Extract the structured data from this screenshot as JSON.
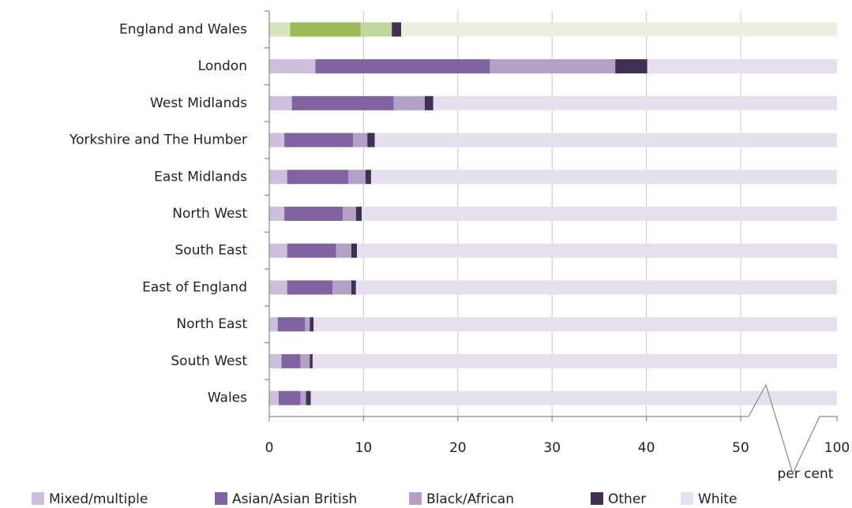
{
  "chart_data": {
    "type": "stacked-bar-horizontal",
    "categories": [
      "England and Wales",
      "London",
      "West Midlands",
      "Yorkshire and The Humber",
      "East Midlands",
      "North West",
      "South East",
      "East of England",
      "North East",
      "South West",
      "Wales"
    ],
    "series": [
      {
        "name": "Mixed/multiple",
        "color": "#ccc0dc",
        "highlight_color": "#d7e4bd",
        "values": [
          2.2,
          4.9,
          2.4,
          1.6,
          1.9,
          1.6,
          1.9,
          1.9,
          0.9,
          1.3,
          1.0
        ]
      },
      {
        "name": "Asian/Asian British",
        "color": "#8064a2",
        "highlight_color": "#9bbb59",
        "values": [
          7.5,
          18.5,
          10.8,
          7.3,
          6.5,
          6.2,
          5.2,
          4.8,
          2.9,
          2.0,
          2.3
        ]
      },
      {
        "name": "Black/African",
        "color": "#b3a2c7",
        "highlight_color": "#c3d69b",
        "values": [
          3.3,
          13.3,
          3.3,
          1.5,
          1.8,
          1.4,
          1.6,
          2.0,
          0.5,
          1.0,
          0.6
        ]
      },
      {
        "name": "Other",
        "color": "#403152",
        "highlight_color": "#403152",
        "values": [
          1.0,
          3.4,
          0.9,
          0.8,
          0.6,
          0.6,
          0.6,
          0.5,
          0.4,
          0.3,
          0.5
        ]
      },
      {
        "name": "White",
        "color": "#e6e0ec",
        "highlight_color": "#ebf1de",
        "values": [
          86.0,
          59.9,
          82.6,
          88.8,
          89.2,
          90.2,
          90.7,
          90.8,
          95.3,
          95.4,
          95.6
        ]
      }
    ],
    "highlight_category": "England and Wales",
    "x_label": "per cent",
    "xlim": [
      0,
      100
    ],
    "xticks": [
      0,
      10,
      20,
      30,
      40,
      50,
      100
    ],
    "x_break_after": 50,
    "grid": true,
    "legend": "bottom"
  }
}
